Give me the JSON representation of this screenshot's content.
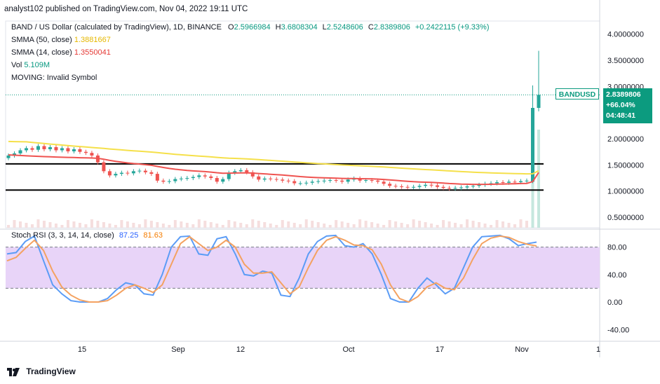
{
  "header": {
    "published": "analyst102 published on TradingView.com, Nov 04, 2022 19:11 UTC"
  },
  "legend": {
    "symbol": "BAND / US Dollar (calculated by TradingView), 1D, BINANCE",
    "o_label": "O",
    "o": "2.5966984",
    "h_label": "H",
    "h": "3.6808304",
    "l_label": "L",
    "l": "2.5248606",
    "c_label": "C",
    "c": "2.8389806",
    "change": "+0.2422115 (+9.33%)",
    "sma50_label": "SMMA (50, close)",
    "sma50": "1.3881667",
    "sma14_label": "SMMA (14, close)",
    "sma14": "1.3550041",
    "vol_label": "Vol",
    "vol": "5.109M",
    "moving": "MOVING: Invalid Symbol"
  },
  "stoch": {
    "label": "Stoch RSI (3, 3, 14, 14, close)",
    "k": "87.25",
    "d": "81.63"
  },
  "price_badge": {
    "symbol": "BANDUSD",
    "price": "2.8389806",
    "change": "+66.04%",
    "countdown": "04:48:41"
  },
  "footer": {
    "logo_text": "TradingView"
  },
  "colors": {
    "up": "#26a69a",
    "down": "#ef5350",
    "sma50": "#f5e04a",
    "sma14": "#ef5350",
    "stoch_k": "#5b9cf6",
    "stoch_d": "#f4a261",
    "stoch_band": "#e8d4f8"
  },
  "chart_data": [
    {
      "type": "candlestick",
      "title": "BAND / US Dollar, 1D",
      "x_ticks": [
        "15",
        "Sep",
        "12",
        "Oct",
        "17",
        "Nov",
        "1"
      ],
      "y_ticks": [
        "4.0000000",
        "3.5000000",
        "3.0000000",
        "2.0000000",
        "1.5000000",
        "1.0000000",
        "0.5000000"
      ],
      "ylim": [
        0.3,
        4.25
      ],
      "horizontal_lines": [
        1.52,
        1.02
      ],
      "candles_close": [
        1.68,
        1.72,
        1.78,
        1.82,
        1.79,
        1.86,
        1.8,
        1.84,
        1.78,
        1.82,
        1.76,
        1.8,
        1.75,
        1.73,
        1.68,
        1.55,
        1.38,
        1.3,
        1.33,
        1.35,
        1.34,
        1.38,
        1.39,
        1.36,
        1.33,
        1.2,
        1.18,
        1.19,
        1.23,
        1.24,
        1.25,
        1.27,
        1.3,
        1.28,
        1.25,
        1.18,
        1.23,
        1.35,
        1.38,
        1.4,
        1.36,
        1.28,
        1.22,
        1.24,
        1.23,
        1.22,
        1.2,
        1.19,
        1.15,
        1.15,
        1.16,
        1.18,
        1.19,
        1.2,
        1.21,
        1.2,
        1.18,
        1.22,
        1.24,
        1.2,
        1.21,
        1.2,
        1.18,
        1.14,
        1.1,
        1.09,
        1.08,
        1.07,
        1.08,
        1.1,
        1.12,
        1.11,
        1.08,
        1.06,
        1.05,
        1.06,
        1.07,
        1.09,
        1.1,
        1.12,
        1.14,
        1.15,
        1.17,
        1.16,
        1.18,
        1.17,
        1.19,
        1.2,
        2.59,
        2.84
      ],
      "last_close": 2.8389806,
      "last_high": 3.6808304,
      "last_low": 2.5248606
    },
    {
      "type": "line",
      "title": "Stoch RSI (3, 3, 14, 14, close)",
      "y_ticks": [
        "80.00",
        "40.00",
        "0.00",
        "-40.00"
      ],
      "band": [
        20,
        80
      ],
      "ylim": [
        -55,
        103
      ],
      "series": [
        {
          "name": "K",
          "values": [
            70,
            72,
            88,
            96,
            60,
            25,
            12,
            2,
            0,
            0,
            0,
            5,
            18,
            28,
            25,
            12,
            10,
            40,
            80,
            95,
            96,
            70,
            68,
            92,
            95,
            70,
            40,
            38,
            45,
            42,
            10,
            8,
            35,
            70,
            88,
            96,
            97,
            82,
            80,
            85,
            70,
            40,
            5,
            0,
            0,
            20,
            35,
            25,
            12,
            20,
            50,
            80,
            95,
            96,
            97,
            92,
            82,
            85,
            87.25
          ]
        },
        {
          "name": "D",
          "values": [
            60,
            65,
            78,
            90,
            75,
            45,
            22,
            10,
            3,
            0,
            0,
            2,
            10,
            20,
            25,
            20,
            14,
            25,
            55,
            85,
            95,
            85,
            75,
            80,
            90,
            80,
            55,
            42,
            42,
            44,
            28,
            12,
            22,
            50,
            75,
            90,
            95,
            90,
            83,
            82,
            76,
            55,
            25,
            5,
            0,
            8,
            22,
            28,
            20,
            18,
            35,
            62,
            85,
            93,
            96,
            94,
            88,
            84,
            81.63
          ]
        }
      ]
    }
  ]
}
